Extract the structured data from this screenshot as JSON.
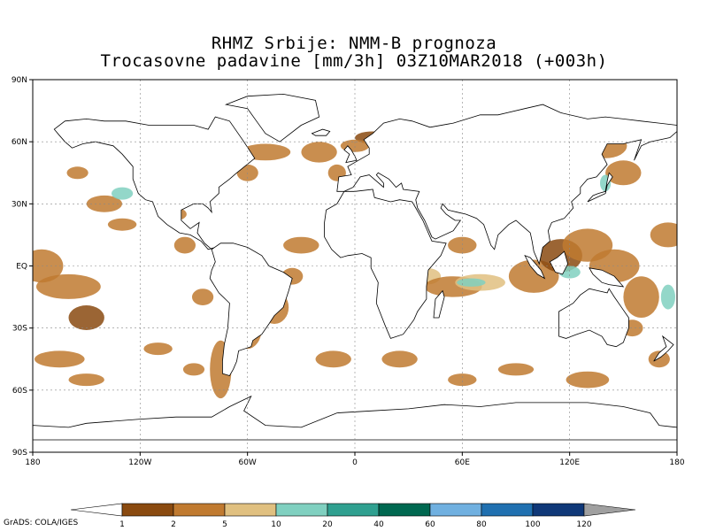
{
  "title": {
    "line1": "RHMZ Srbije: NMM-B prognoza",
    "line2": "Trocasovne padavine [mm/3h] 03Z10MAR2018 (+003h)"
  },
  "axes": {
    "lat_labels": [
      "90N",
      "60N",
      "30N",
      "EQ",
      "30S",
      "60S",
      "90S"
    ],
    "lat_values": [
      90,
      60,
      30,
      0,
      -30,
      -60,
      -90
    ],
    "lon_labels": [
      "180",
      "120W",
      "60W",
      "0",
      "60E",
      "120E",
      "180"
    ],
    "lon_values": [
      -180,
      -120,
      -60,
      0,
      60,
      120,
      180
    ]
  },
  "legend": {
    "values": [
      "1",
      "2",
      "5",
      "10",
      "20",
      "40",
      "60",
      "80",
      "100",
      "120"
    ],
    "colors": [
      "#8a4a10",
      "#c07a30",
      "#e0c080",
      "#80d0c0",
      "#30a090",
      "#006850",
      "#70b0e0",
      "#2070b0",
      "#103878",
      "#a0a0a0"
    ],
    "under_color": "#ffffff"
  },
  "credit": "GrADS: COLA/IGES",
  "precip_color": "#c08040",
  "land_outline_color": "#000000"
}
